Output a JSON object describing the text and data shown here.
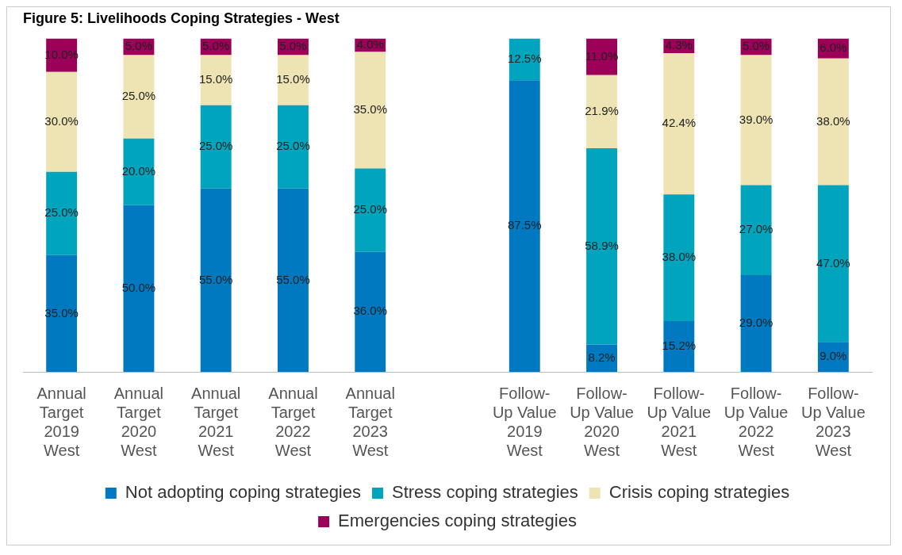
{
  "chart_data": {
    "type": "bar",
    "title": "Figure 5: Livelihoods Coping Strategies - West",
    "stacked": true,
    "legend": "bottom",
    "grid": false,
    "categories": [
      "Annual Target 2019 West",
      "Annual Target 2020 West",
      "Annual Target 2021 West",
      "Annual Target 2022 West",
      "Annual Target 2023 West",
      null,
      "Follow-Up Value 2019 West",
      "Follow-Up Value 2020 West",
      "Follow-Up Value 2021 West",
      "Follow-Up Value 2022 West",
      "Follow-Up Value 2023 West"
    ],
    "series": [
      {
        "name": "Not adopting coping strategies",
        "color": "#0079c1",
        "values": [
          35,
          50,
          55,
          55,
          36,
          null,
          87.5,
          8.2,
          15.2,
          29,
          9
        ],
        "value_labels": [
          "35.0%",
          "50.0%",
          "55.0%",
          "55.0%",
          "36.0%",
          null,
          "87.5%",
          "8.2%",
          "15.2%",
          "29.0%",
          "9.0%"
        ]
      },
      {
        "name": "Stress coping strategies",
        "color": "#00a5bd",
        "values": [
          25,
          20,
          25,
          25,
          25,
          null,
          12.5,
          58.9,
          38,
          27,
          47
        ],
        "value_labels": [
          "25.0%",
          "20.0%",
          "25.0%",
          "25.0%",
          "25.0%",
          null,
          "12.5%",
          "58.9%",
          "38.0%",
          "27.0%",
          "47.0%"
        ]
      },
      {
        "name": "Crisis coping strategies",
        "color": "#ede3b3",
        "values": [
          30,
          25,
          15,
          15,
          35,
          null,
          null,
          21.9,
          42.4,
          39,
          38
        ],
        "value_labels": [
          "30.0%",
          "25.0%",
          "15.0%",
          "15.0%",
          "35.0%",
          null,
          null,
          "21.9%",
          "42.4%",
          "39.0%",
          "38.0%"
        ]
      },
      {
        "name": "Emergencies coping strategies",
        "color": "#9c0058",
        "values": [
          10,
          5,
          5,
          5,
          4,
          null,
          null,
          11,
          4.3,
          5,
          6
        ],
        "value_labels": [
          "10.0%",
          "5.0%",
          "5.0%",
          "5.0%",
          "4.0%",
          null,
          null,
          "11.0%",
          "4.3%",
          "5.0%",
          "6.0%"
        ]
      }
    ]
  }
}
